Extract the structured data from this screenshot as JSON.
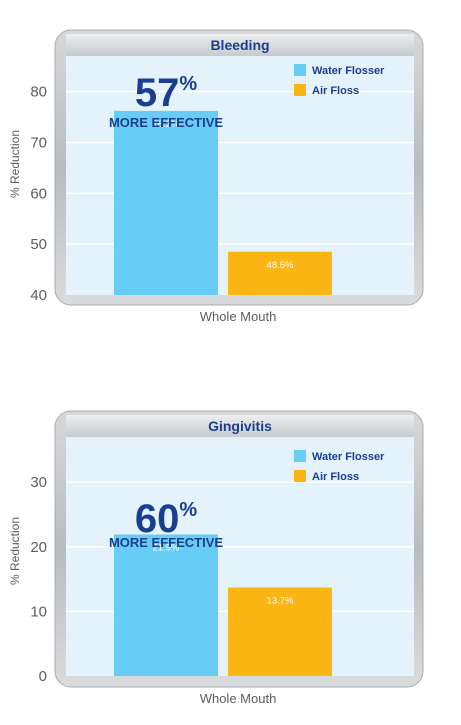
{
  "colors": {
    "water_flosser": "#67cdf5",
    "air_floss": "#fbb616",
    "plot_bg": "#e3f2fb",
    "title_blue": "#1b3f8f",
    "frame_gray": "#c9cbce",
    "axis_text": "#5b5d60"
  },
  "chart_data": [
    {
      "type": "bar",
      "title": "Bleeding",
      "xlabel": "Whole Mouth",
      "ylabel": "% Reduction",
      "ylim": [
        40,
        87
      ],
      "yticks": [
        40,
        50,
        60,
        70,
        80
      ],
      "grid": true,
      "legend_position": "top-right",
      "series": [
        {
          "name": "Water Flosser",
          "values": [
            76.2
          ],
          "label": "76.2%"
        },
        {
          "name": "Air Floss",
          "values": [
            48.5
          ],
          "label": "48.5%"
        }
      ],
      "callout": {
        "value": "57",
        "unit": "%",
        "text": "MORE EFFECTIVE"
      }
    },
    {
      "type": "bar",
      "title": "Gingivitis",
      "xlabel": "Whole Mouth",
      "ylabel": "% Reduction",
      "ylim": [
        0,
        37
      ],
      "yticks": [
        0,
        10,
        20,
        30
      ],
      "grid": true,
      "legend_position": "top-right",
      "series": [
        {
          "name": "Water Flosser",
          "values": [
            21.9
          ],
          "label": "21.9%"
        },
        {
          "name": "Air Floss",
          "values": [
            13.7
          ],
          "label": "13.7%"
        }
      ],
      "callout": {
        "value": "60",
        "unit": "%",
        "text": "MORE EFFECTIVE"
      }
    }
  ]
}
